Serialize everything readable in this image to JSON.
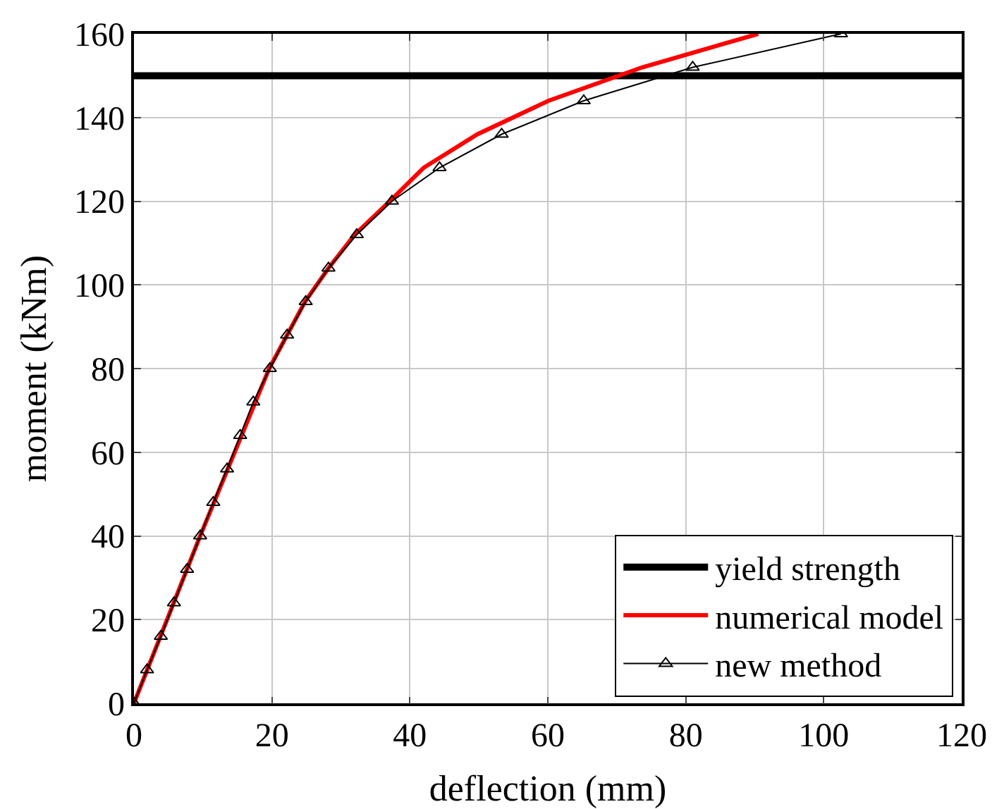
{
  "chart_data": {
    "type": "line",
    "xlabel": "deflection (mm)",
    "ylabel": "moment (kNm)",
    "xlim": [
      0,
      120
    ],
    "xticks": [
      0,
      20,
      40,
      60,
      80,
      100,
      120
    ],
    "ylim": [
      0,
      160
    ],
    "yticks": [
      0,
      20,
      40,
      60,
      80,
      100,
      120,
      140,
      160
    ],
    "grid": true,
    "legend": "bottom right",
    "series": [
      {
        "name": "yield strength",
        "color": "#000000",
        "x": [
          0,
          120
        ],
        "values": [
          150,
          150
        ],
        "marker": "none"
      },
      {
        "name": "numerical model",
        "color": "#ff0000",
        "x": [
          0,
          9.6,
          19.6,
          24.8,
          28.2,
          32,
          37.1,
          42,
          49.8,
          60.1,
          73.7,
          90.5
        ],
        "values": [
          0,
          40,
          80,
          96,
          104,
          112,
          120,
          128,
          136,
          144,
          152,
          160
        ],
        "marker": "none"
      },
      {
        "name": "new method",
        "color": "#000000",
        "x": [
          0,
          1.9,
          3.9,
          5.8,
          7.7,
          9.6,
          11.5,
          13.5,
          15.4,
          17.3,
          19.7,
          22.2,
          24.9,
          28.2,
          32.3,
          37.4,
          44.3,
          53.3,
          65.2,
          81,
          102.5
        ],
        "values": [
          0,
          8,
          16,
          24,
          32,
          40,
          48,
          56,
          64,
          72,
          80,
          88,
          96,
          104,
          112,
          120,
          128,
          136,
          144,
          152,
          160
        ],
        "marker": "triangle"
      }
    ]
  }
}
